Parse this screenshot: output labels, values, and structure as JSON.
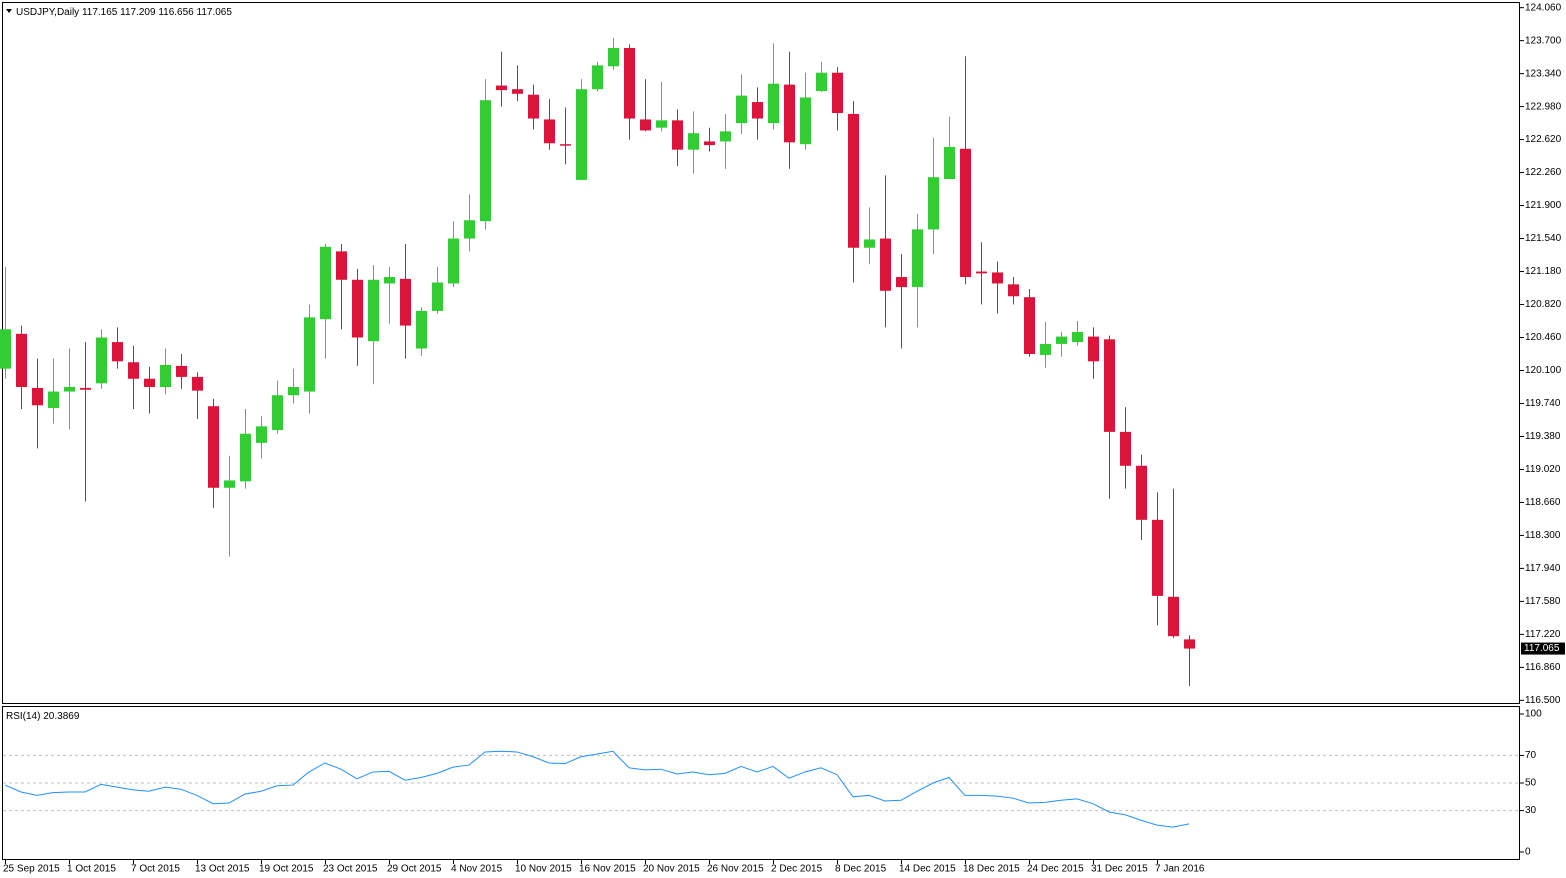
{
  "chart_data": [
    {
      "type": "candlestick",
      "title": "USDJPY,Daily",
      "categories": [
        "25 Sep 2015",
        null,
        null,
        null,
        "1 Oct 2015",
        null,
        null,
        null,
        "7 Oct 2015",
        null,
        null,
        null,
        "13 Oct 2015",
        null,
        null,
        null,
        "19 Oct 2015",
        null,
        null,
        null,
        "23 Oct 2015",
        null,
        null,
        null,
        "29 Oct 2015",
        null,
        null,
        null,
        "4 Nov 2015",
        null,
        null,
        null,
        "10 Nov 2015",
        null,
        null,
        null,
        "16 Nov 2015",
        null,
        null,
        null,
        "20 Nov 2015",
        null,
        null,
        null,
        "26 Nov 2015",
        null,
        null,
        null,
        "2 Dec 2015",
        null,
        null,
        null,
        "8 Dec 2015",
        null,
        null,
        null,
        "14 Dec 2015",
        null,
        null,
        null,
        "18 Dec 2015",
        null,
        null,
        null,
        "24 Dec 2015",
        null,
        null,
        null,
        "31 Dec 2015",
        null,
        null,
        null,
        "7 Jan 2016",
        null,
        null
      ],
      "open": [
        120.12,
        120.5,
        119.91,
        119.69,
        119.87,
        119.91,
        119.96,
        120.41,
        120.19,
        120.01,
        119.92,
        120.15,
        120.03,
        119.71,
        118.82,
        118.89,
        119.31,
        119.45,
        119.83,
        119.87,
        120.66,
        121.4,
        121.09,
        120.42,
        121.05,
        121.1,
        120.34,
        120.75,
        121.05,
        121.54,
        121.73,
        123.21,
        123.17,
        123.11,
        122.84,
        122.57,
        122.18,
        123.17,
        123.42,
        123.62,
        122.84,
        122.75,
        122.83,
        122.51,
        122.6,
        122.6,
        122.8,
        123.03,
        122.8,
        123.22,
        122.57,
        123.15,
        123.35,
        122.9,
        121.44,
        121.54,
        121.12,
        121.01,
        121.64,
        122.19,
        122.52,
        121.18,
        121.17,
        121.04,
        120.9,
        120.27,
        120.39,
        120.41,
        120.47,
        120.44,
        119.43,
        119.06,
        118.47,
        117.63,
        117.165
      ],
      "high": [
        121.23,
        120.59,
        120.23,
        120.23,
        120.34,
        120.41,
        120.55,
        120.57,
        120.37,
        120.14,
        120.34,
        120.28,
        120.08,
        119.79,
        119.17,
        119.68,
        119.6,
        119.99,
        120.12,
        120.82,
        121.48,
        121.48,
        121.21,
        121.25,
        121.23,
        121.48,
        120.79,
        121.23,
        121.73,
        122.02,
        123.28,
        123.58,
        123.43,
        123.22,
        123.06,
        122.97,
        123.28,
        123.47,
        123.73,
        123.66,
        123.28,
        123.25,
        122.95,
        122.93,
        122.75,
        122.9,
        123.33,
        123.19,
        123.67,
        123.58,
        123.35,
        123.47,
        123.41,
        123.04,
        121.88,
        122.23,
        121.37,
        121.81,
        122.64,
        122.87,
        123.53,
        121.5,
        121.29,
        121.12,
        120.99,
        120.63,
        120.52,
        120.64,
        120.57,
        120.48,
        119.7,
        119.18,
        118.77,
        118.81,
        117.209
      ],
      "low": [
        120.01,
        119.68,
        119.25,
        119.52,
        119.46,
        118.67,
        119.9,
        120.12,
        119.68,
        119.63,
        119.84,
        119.9,
        119.57,
        118.6,
        118.07,
        118.81,
        119.14,
        119.41,
        119.74,
        119.63,
        120.23,
        120.55,
        120.15,
        119.95,
        120.61,
        120.23,
        120.26,
        120.72,
        121.01,
        121.4,
        121.64,
        122.98,
        123.04,
        122.73,
        122.51,
        122.35,
        122.18,
        123.15,
        123.38,
        122.62,
        122.71,
        122.71,
        122.33,
        122.25,
        122.49,
        122.3,
        122.68,
        122.62,
        122.73,
        122.3,
        122.51,
        123.14,
        122.72,
        121.06,
        121.26,
        120.57,
        120.34,
        120.57,
        121.37,
        122.19,
        121.04,
        120.82,
        120.72,
        120.82,
        120.25,
        120.13,
        120.25,
        120.37,
        120.01,
        118.7,
        118.81,
        118.25,
        117.32,
        117.18,
        116.656
      ],
      "close": [
        120.55,
        119.92,
        119.72,
        119.87,
        119.92,
        119.89,
        120.46,
        120.2,
        120.01,
        119.92,
        120.16,
        120.03,
        119.88,
        118.82,
        118.9,
        119.41,
        119.49,
        119.83,
        119.92,
        120.68,
        121.45,
        121.09,
        120.46,
        121.09,
        121.12,
        120.59,
        120.75,
        121.06,
        121.54,
        121.74,
        123.05,
        123.16,
        123.12,
        122.85,
        122.58,
        122.56,
        123.17,
        123.43,
        123.62,
        122.85,
        122.72,
        122.83,
        122.51,
        122.69,
        122.56,
        122.71,
        123.1,
        122.85,
        123.23,
        122.59,
        123.08,
        123.35,
        122.91,
        121.44,
        121.53,
        120.97,
        121.01,
        121.64,
        122.21,
        122.54,
        121.12,
        121.16,
        121.05,
        120.91,
        120.28,
        120.39,
        120.47,
        120.52,
        120.2,
        119.43,
        119.06,
        118.47,
        117.64,
        117.2,
        117.065
      ],
      "up_color": "#32cd32",
      "down_color": "#dc143c",
      "ylim": [
        116.46,
        124.1
      ],
      "yticks": [
        {
          "value": 124.06,
          "label": "124.060"
        },
        {
          "value": 123.7,
          "label": "123.700"
        },
        {
          "value": 123.34,
          "label": "123.340"
        },
        {
          "value": 122.98,
          "label": "122.980"
        },
        {
          "value": 122.62,
          "label": "122.620"
        },
        {
          "value": 122.26,
          "label": "122.260"
        },
        {
          "value": 121.9,
          "label": "121.900"
        },
        {
          "value": 121.54,
          "label": "121.540"
        },
        {
          "value": 121.18,
          "label": "121.180"
        },
        {
          "value": 120.82,
          "label": "120.820"
        },
        {
          "value": 120.46,
          "label": "120.460"
        },
        {
          "value": 120.1,
          "label": "120.100"
        },
        {
          "value": 119.74,
          "label": "119.740"
        },
        {
          "value": 119.38,
          "label": "119.380"
        },
        {
          "value": 119.02,
          "label": "119.020"
        },
        {
          "value": 118.66,
          "label": "118.660"
        },
        {
          "value": 118.3,
          "label": "118.300"
        },
        {
          "value": 117.94,
          "label": "117.940"
        },
        {
          "value": 117.58,
          "label": "117.580"
        },
        {
          "value": 117.22,
          "label": "117.220"
        },
        {
          "value": 116.86,
          "label": "116.860"
        },
        {
          "value": 116.5,
          "label": "116.500"
        }
      ]
    },
    {
      "type": "line",
      "series": [
        {
          "name": "RSI(14)",
          "color": "#1e90ff",
          "values": [
            48.5,
            43.5,
            41,
            43,
            43.5,
            43.5,
            49,
            47,
            45,
            44,
            47,
            45.5,
            41,
            35,
            35.5,
            42,
            44,
            48,
            48.5,
            58,
            64.5,
            60,
            53,
            58,
            58.5,
            52,
            54,
            57,
            61.5,
            63,
            72.5,
            73,
            72.5,
            69,
            64.5,
            64,
            69,
            71,
            73,
            61,
            59.5,
            60,
            56.5,
            58,
            56,
            57,
            62,
            58,
            62,
            53.5,
            58,
            61,
            56,
            40,
            41,
            37,
            37.5,
            44,
            50,
            54,
            41,
            41,
            40.5,
            39,
            35.5,
            36,
            37.5,
            38.5,
            35,
            29,
            27,
            23,
            19.5,
            18,
            20.3869
          ]
        }
      ],
      "ylim": [
        0,
        100
      ],
      "yticks": [
        0,
        30,
        50,
        70,
        100
      ],
      "levels": [
        30,
        50,
        70
      ]
    }
  ]
}
